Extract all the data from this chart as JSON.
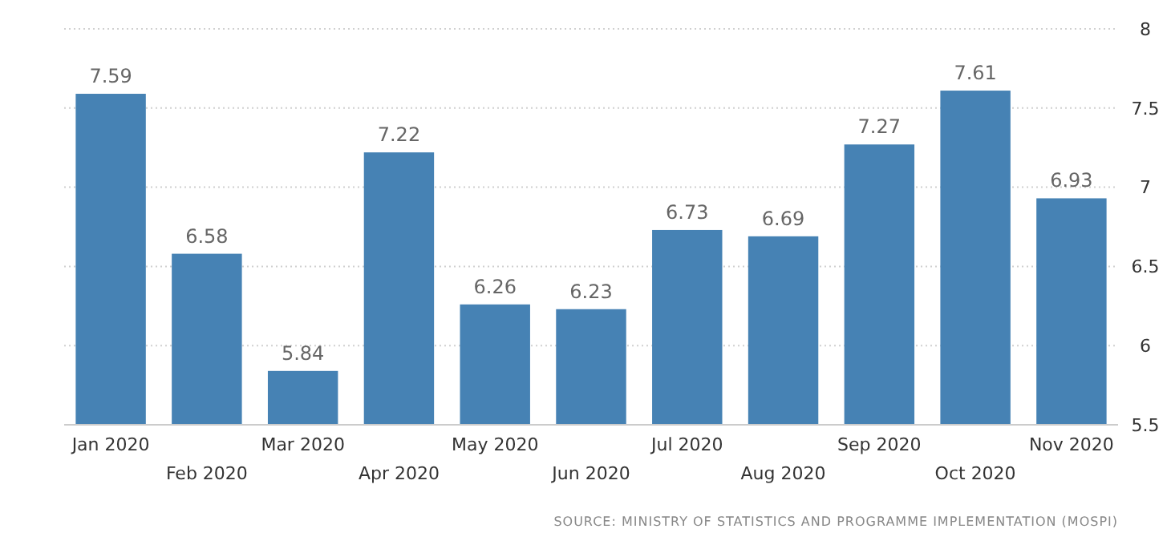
{
  "chart_data": {
    "type": "bar",
    "categories": [
      "Jan 2020",
      "Feb 2020",
      "Mar 2020",
      "Apr 2020",
      "May 2020",
      "Jun 2020",
      "Jul 2020",
      "Aug 2020",
      "Sep 2020",
      "Oct 2020",
      "Nov 2020"
    ],
    "values": [
      7.59,
      6.58,
      5.84,
      7.22,
      6.26,
      6.23,
      6.73,
      6.69,
      7.27,
      7.61,
      6.93
    ],
    "color": "#4682b4",
    "ylim": [
      5.5,
      8
    ],
    "yticks": [
      5.5,
      6,
      6.5,
      7,
      7.5,
      8
    ],
    "grid": "y",
    "data_labels": true,
    "annotations": [
      "SOURCE: MINISTRY OF STATISTICS AND PROGRAMME IMPLEMENTATION (MOSPI)"
    ]
  }
}
